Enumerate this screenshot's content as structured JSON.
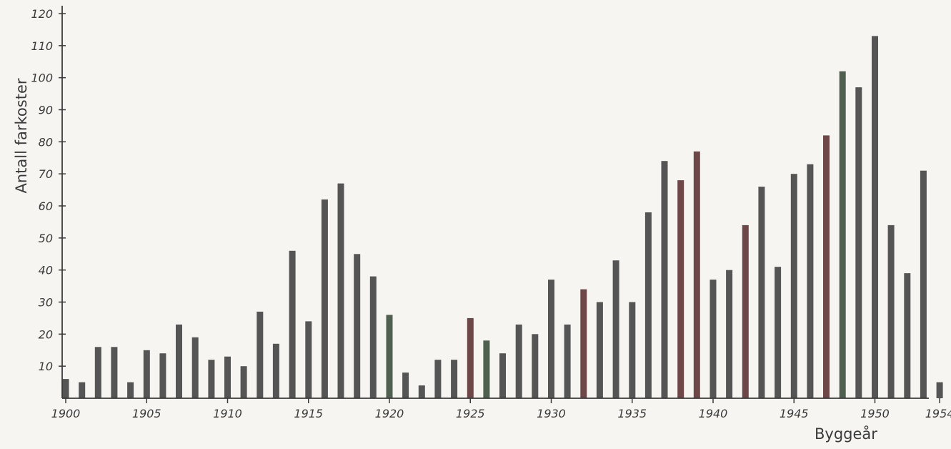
{
  "chart_data": {
    "type": "bar",
    "title": "",
    "xlabel": "Byggeår",
    "ylabel": "Antall farkoster",
    "ylim": [
      0,
      120
    ],
    "yticks": [
      10,
      20,
      30,
      40,
      50,
      60,
      70,
      80,
      90,
      100,
      110,
      120
    ],
    "xticks": [
      "1900",
      "1905",
      "1910",
      "1915",
      "1920",
      "1925",
      "1930",
      "1935",
      "1940",
      "1945",
      "1950",
      "1954"
    ],
    "grid": false,
    "categories": [
      1900,
      1901,
      1902,
      1903,
      1904,
      1905,
      1906,
      1907,
      1908,
      1909,
      1910,
      1911,
      1912,
      1913,
      1914,
      1915,
      1916,
      1917,
      1918,
      1919,
      1920,
      1921,
      1922,
      1923,
      1924,
      1925,
      1926,
      1927,
      1928,
      1929,
      1930,
      1931,
      1932,
      1933,
      1934,
      1935,
      1936,
      1937,
      1938,
      1939,
      1940,
      1941,
      1942,
      1943,
      1944,
      1945,
      1946,
      1947,
      1948,
      1949,
      1950,
      1951,
      1952,
      1953,
      1954
    ],
    "values": [
      6,
      5,
      16,
      16,
      5,
      15,
      14,
      23,
      19,
      12,
      13,
      10,
      27,
      17,
      46,
      24,
      62,
      67,
      45,
      38,
      26,
      8,
      4,
      12,
      12,
      25,
      18,
      14,
      23,
      20,
      37,
      23,
      34,
      30,
      43,
      30,
      58,
      74,
      68,
      77,
      37,
      40,
      54,
      66,
      41,
      70,
      73,
      82,
      102,
      97,
      113,
      54,
      39,
      71,
      5
    ],
    "colors": {
      "bar_default": "#555555",
      "bar_red": "#6e4848",
      "bar_green": "#4f5f50",
      "axis": "#3a3a3a"
    },
    "red_tinted_years": [
      1925,
      1932,
      1938,
      1939,
      1942,
      1947
    ],
    "green_tinted_years": [
      1920,
      1926,
      1948
    ]
  }
}
